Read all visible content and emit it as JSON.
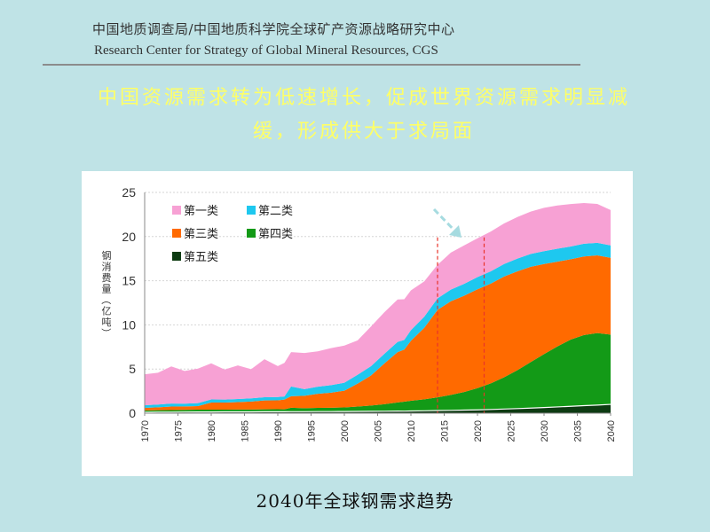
{
  "header": {
    "org_cn": "中国地质调查局/中国地质科学院全球矿产资源战略研究中心",
    "org_en": "Research Center for Strategy of Global Mineral Resources, CGS"
  },
  "headline": {
    "line1": "中国资源需求转为低速增长，促成世界资源需求明显减",
    "line2": "缓，形成供大于求局面"
  },
  "caption": "2040年全球钢需求趋势",
  "colors": {
    "background": "#bfe3e6",
    "headline": "#ffff66",
    "cat1": "#f7a1d4",
    "cat2": "#1ec8ef",
    "cat3": "#ff6a00",
    "cat4": "#139a17",
    "cat5": "#0d3b12",
    "marker": "#e8332a",
    "arrow": "#a6dbe0"
  },
  "chart_data": {
    "type": "area",
    "stacked": true,
    "ylabel": "钢消费量（亿吨）",
    "xlabel": "",
    "ylim": [
      0,
      25
    ],
    "yticks": [
      0,
      5,
      10,
      15,
      20,
      25
    ],
    "xlim": [
      1970,
      2040
    ],
    "xticks": [
      1970,
      1975,
      1980,
      1985,
      1990,
      1995,
      2000,
      2005,
      2010,
      2015,
      2020,
      2025,
      2030,
      2035,
      2040
    ],
    "grid": true,
    "legend_position": "top-left",
    "vertical_markers": [
      2014,
      2021
    ],
    "x": [
      1970,
      1972,
      1974,
      1976,
      1978,
      1980,
      1982,
      1984,
      1986,
      1988,
      1990,
      1991,
      1992,
      1994,
      1996,
      1998,
      2000,
      2002,
      2004,
      2006,
      2008,
      2009,
      2010,
      2012,
      2014,
      2016,
      2018,
      2020,
      2022,
      2024,
      2026,
      2028,
      2030,
      2032,
      2034,
      2036,
      2038,
      2040
    ],
    "series": [
      {
        "name": "第五类",
        "values": [
          0.1,
          0.12,
          0.12,
          0.13,
          0.14,
          0.14,
          0.15,
          0.15,
          0.15,
          0.16,
          0.16,
          0.16,
          0.17,
          0.17,
          0.18,
          0.18,
          0.19,
          0.2,
          0.21,
          0.22,
          0.24,
          0.23,
          0.25,
          0.27,
          0.3,
          0.32,
          0.35,
          0.38,
          0.42,
          0.47,
          0.52,
          0.58,
          0.64,
          0.71,
          0.78,
          0.85,
          0.92,
          1.0
        ]
      },
      {
        "name": "第四类",
        "values": [
          0.2,
          0.22,
          0.23,
          0.25,
          0.26,
          0.26,
          0.25,
          0.26,
          0.27,
          0.28,
          0.29,
          0.28,
          0.45,
          0.4,
          0.42,
          0.44,
          0.46,
          0.55,
          0.66,
          0.8,
          0.98,
          1.07,
          1.15,
          1.3,
          1.5,
          1.75,
          2.05,
          2.45,
          2.95,
          3.6,
          4.35,
          5.2,
          6.05,
          6.85,
          7.55,
          8.0,
          8.15,
          7.9
        ]
      },
      {
        "name": "第三类",
        "values": [
          0.3,
          0.32,
          0.4,
          0.38,
          0.4,
          0.8,
          0.8,
          0.85,
          0.9,
          1.0,
          1.0,
          1.1,
          1.3,
          1.4,
          1.6,
          1.7,
          1.9,
          2.6,
          3.4,
          4.6,
          5.7,
          5.9,
          6.8,
          8.1,
          9.9,
          10.6,
          10.9,
          11.2,
          11.3,
          11.4,
          11.2,
          10.8,
          10.2,
          9.6,
          9.1,
          8.9,
          8.8,
          8.7
        ]
      },
      {
        "name": "第二类",
        "values": [
          0.3,
          0.32,
          0.34,
          0.32,
          0.34,
          0.35,
          0.34,
          0.35,
          0.36,
          0.37,
          0.38,
          0.36,
          1.1,
          0.75,
          0.8,
          0.85,
          0.9,
          1.0,
          1.05,
          1.1,
          1.15,
          1.1,
          1.2,
          1.25,
          1.3,
          1.32,
          1.35,
          1.38,
          1.4,
          1.42,
          1.44,
          1.45,
          1.46,
          1.46,
          1.45,
          1.44,
          1.42,
          1.4
        ]
      },
      {
        "name": "第一类",
        "values": [
          3.5,
          3.6,
          4.2,
          3.7,
          3.9,
          4.1,
          3.4,
          3.8,
          3.3,
          4.3,
          3.5,
          3.8,
          3.9,
          4.1,
          4.0,
          4.2,
          4.2,
          3.9,
          4.5,
          4.7,
          4.8,
          4.6,
          4.5,
          4.0,
          3.8,
          4.2,
          4.35,
          4.4,
          4.5,
          4.6,
          4.7,
          4.8,
          4.9,
          4.9,
          4.8,
          4.6,
          4.4,
          4.0
        ]
      }
    ]
  }
}
